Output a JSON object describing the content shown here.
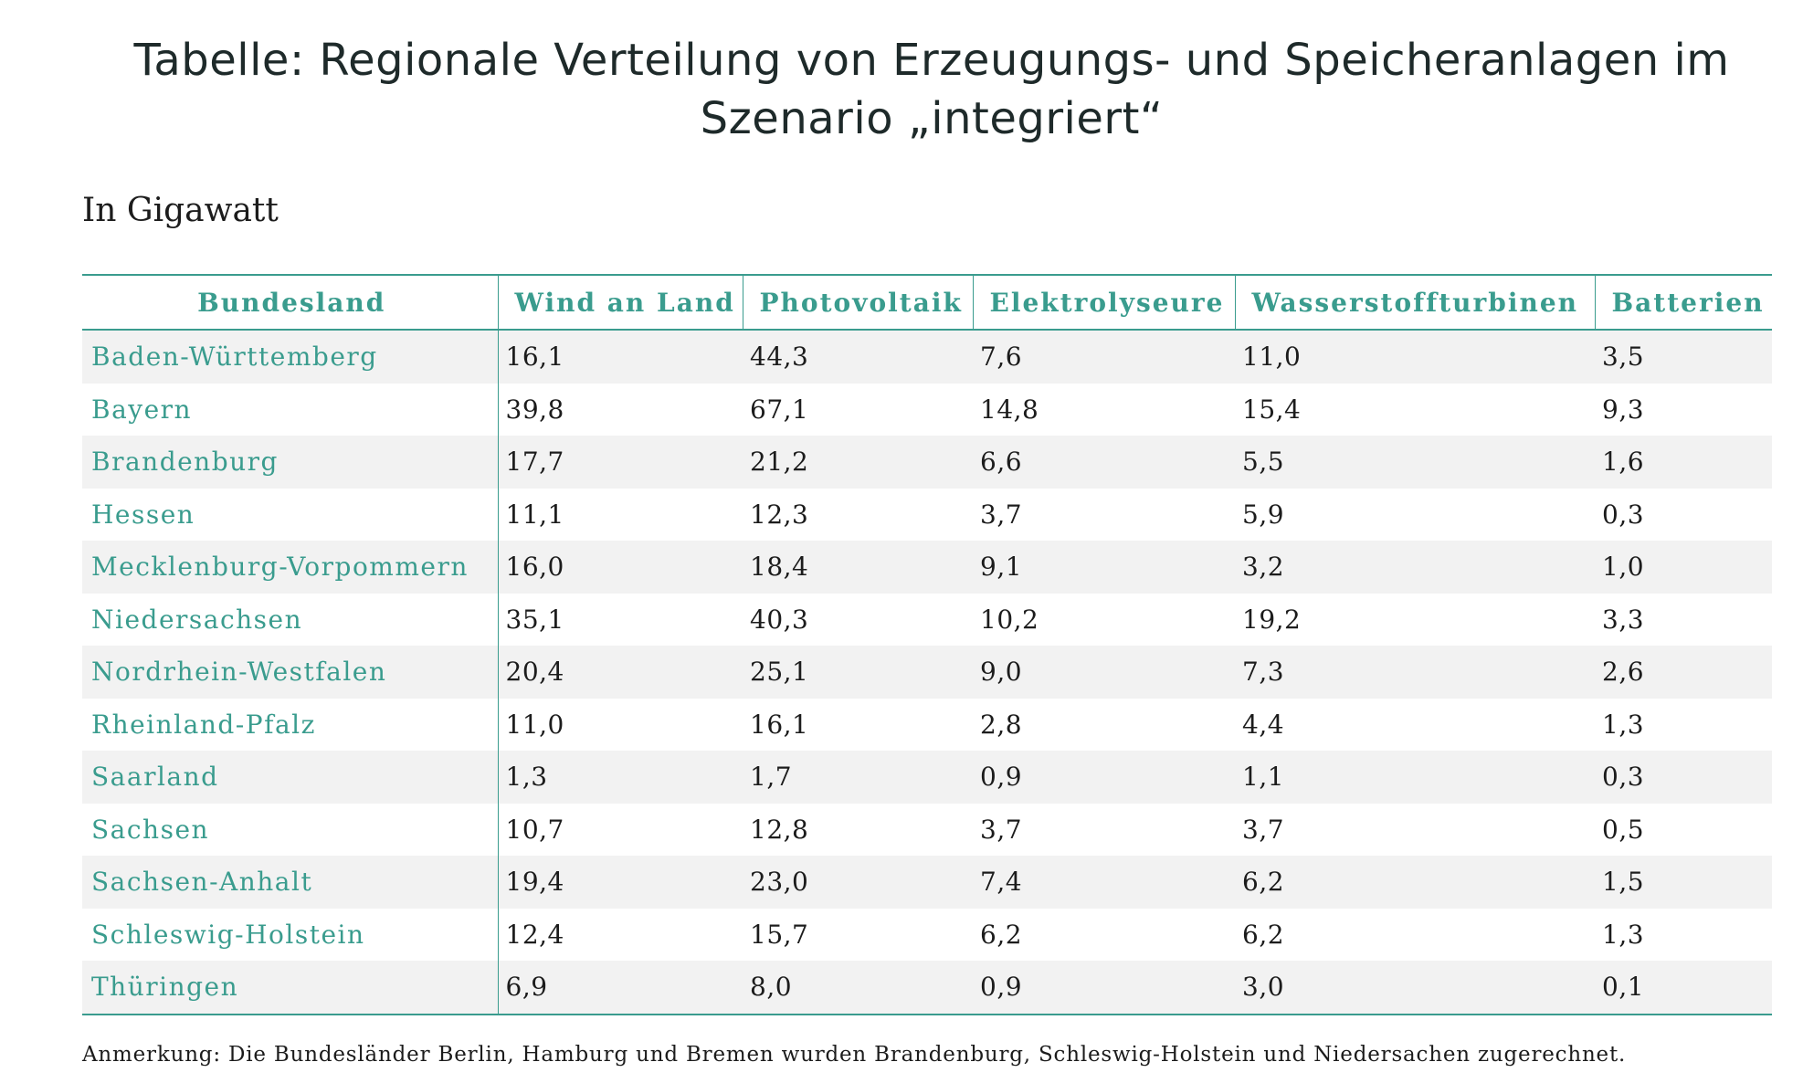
{
  "title_line1": "Tabelle: Regionale Verteilung von Erzeugungs- und Speicheranlagen im",
  "title_line2": "Szenario „integriert“",
  "subtitle": "In Gigawatt",
  "colors": {
    "accent": "#3a9c8e",
    "stripe": "#f2f2f2",
    "text": "#1c1c1c"
  },
  "table": {
    "columns": [
      "Bundesland",
      "Wind an Land",
      "Photovoltaik",
      "Elektrolyseure",
      "Wasserstoffturbinen",
      "Batterien"
    ],
    "rows": [
      [
        "Baden-Württemberg",
        "16,1",
        "44,3",
        "7,6",
        "11,0",
        "3,5"
      ],
      [
        "Bayern",
        "39,8",
        "67,1",
        "14,8",
        "15,4",
        "9,3"
      ],
      [
        "Brandenburg",
        "17,7",
        "21,2",
        "6,6",
        "5,5",
        "1,6"
      ],
      [
        "Hessen",
        "11,1",
        "12,3",
        "3,7",
        "5,9",
        "0,3"
      ],
      [
        "Mecklenburg-Vorpommern",
        "16,0",
        "18,4",
        "9,1",
        "3,2",
        "1,0"
      ],
      [
        "Niedersachsen",
        "35,1",
        "40,3",
        "10,2",
        "19,2",
        "3,3"
      ],
      [
        "Nordrhein-Westfalen",
        "20,4",
        "25,1",
        "9,0",
        "7,3",
        "2,6"
      ],
      [
        "Rheinland-Pfalz",
        "11,0",
        "16,1",
        "2,8",
        "4,4",
        "1,3"
      ],
      [
        "Saarland",
        "1,3",
        "1,7",
        "0,9",
        "1,1",
        "0,3"
      ],
      [
        "Sachsen",
        "10,7",
        "12,8",
        "3,7",
        "3,7",
        "0,5"
      ],
      [
        "Sachsen-Anhalt",
        "19,4",
        "23,0",
        "7,4",
        "6,2",
        "1,5"
      ],
      [
        "Schleswig-Holstein",
        "12,4",
        "15,7",
        "6,2",
        "6,2",
        "1,3"
      ],
      [
        "Thüringen",
        "6,9",
        "8,0",
        "0,9",
        "3,0",
        "0,1"
      ]
    ]
  },
  "note": "Anmerkung: Die Bundesländer Berlin, Hamburg und Bremen wurden Brandenburg, Schleswig-Holstein und Niedersachen zugerechnet."
}
